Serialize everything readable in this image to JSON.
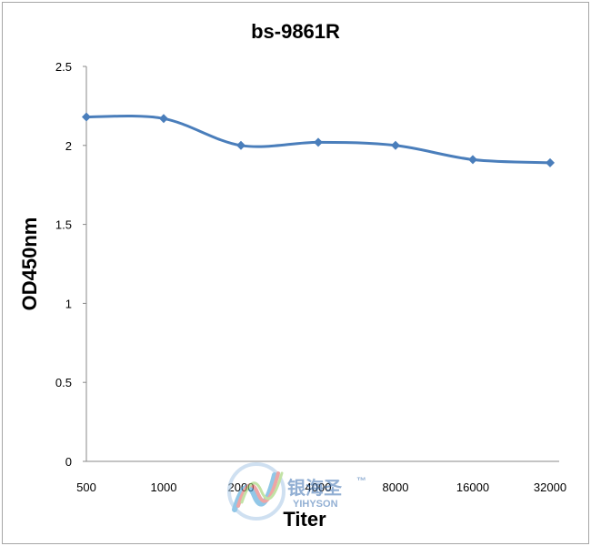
{
  "chart_data": {
    "type": "line",
    "title": "bs-9861R",
    "xlabel": "Titer",
    "ylabel": "OD450nm",
    "categories": [
      "500",
      "1000",
      "2000",
      "4000",
      "8000",
      "16000",
      "32000"
    ],
    "series": [
      {
        "values": [
          2.18,
          2.17,
          2.0,
          2.02,
          2.0,
          1.91,
          1.89
        ]
      }
    ],
    "ylim": [
      0,
      2.5
    ],
    "yticks": [
      "0",
      "0.5",
      "1",
      "1.5",
      "2",
      "2.5"
    ],
    "grid": false,
    "legend": "none",
    "line_color": "#4a7ebb"
  },
  "watermark": {
    "cn": "银海圣",
    "en": "YIHYSON",
    "tm": "™"
  }
}
